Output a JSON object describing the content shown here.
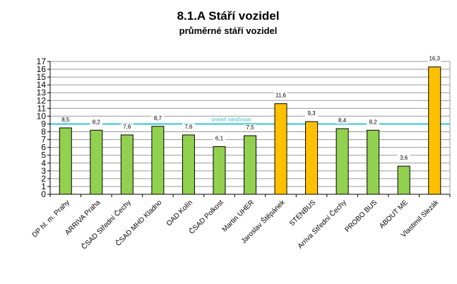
{
  "chart_data": {
    "type": "bar",
    "title": "8.1.A Stáří vozidel",
    "subtitle": "průměrné stáří vozidel",
    "xlabel": "",
    "ylabel": "",
    "ylim": [
      0,
      17
    ],
    "yticks": [
      0,
      1,
      2,
      3,
      4,
      5,
      6,
      7,
      8,
      9,
      10,
      11,
      12,
      13,
      14,
      15,
      16,
      17
    ],
    "grid": true,
    "categories": [
      "DP hl. m. Prahy",
      "ARRIVA Praha",
      "ČSAD Střední Čechy",
      "ČSAD MHD Kladno",
      "OAD Kolín",
      "ČSAD Polkost",
      "Martin UHER",
      "Jaroslav Štěpánek",
      "STENBUS",
      "Arriva Střední Čechy",
      "PROBO BUS",
      "ABOUT ME",
      "Vlastimil Slezák"
    ],
    "values": [
      8.5,
      8.2,
      7.6,
      8.7,
      7.6,
      6.1,
      7.5,
      11.6,
      9.3,
      8.4,
      8.2,
      3.6,
      16.3
    ],
    "labels": [
      "8,5",
      "8,2",
      "7,6",
      "8,7",
      "7,6",
      "6,1",
      "7,5",
      "11,6",
      "9,3",
      "8,4",
      "8,2",
      "3,6",
      "16,3"
    ],
    "highlight": [
      false,
      false,
      false,
      false,
      false,
      false,
      false,
      true,
      true,
      false,
      false,
      false,
      true
    ],
    "colors": {
      "normal": "#92d050",
      "highlight": "#ffc000",
      "reference": "#33c3d3",
      "grid": "#9a9a9a"
    },
    "reference_line": {
      "value": 9,
      "label": "úroveň náročnosti"
    }
  }
}
